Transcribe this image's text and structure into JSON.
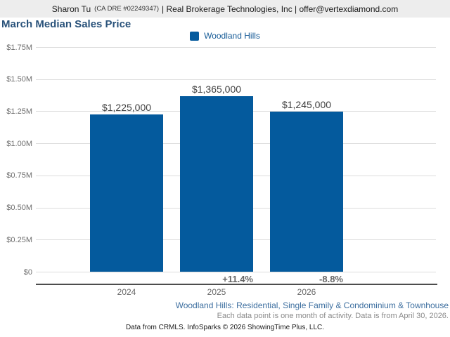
{
  "header": {
    "agent_name": "Sharon Tu",
    "license": "(CA DRE #02249347)",
    "company_contact": "| Real Brokerage Technologies, Inc | offer@vertexdiamond.com"
  },
  "colors": {
    "bar": "#045a9d",
    "title": "#29527a",
    "footer_link": "#3c6e9f",
    "header_background": "#ededed"
  },
  "chart_data": {
    "type": "bar",
    "title": "March Median Sales Price",
    "legend": [
      {
        "label": "Woodland Hills",
        "color": "#045a9d"
      }
    ],
    "legend_position": "top",
    "grid": true,
    "categories": [
      "2024",
      "2025",
      "2026"
    ],
    "series": [
      {
        "name": "Woodland Hills",
        "values": [
          1225000,
          1365000,
          1245000
        ],
        "value_labels": [
          "$1,225,000",
          "$1,365,000",
          "$1,245,000"
        ],
        "pct_change": [
          null,
          "+11.4%",
          "-8.8%"
        ]
      }
    ],
    "ylabel": "",
    "xlabel": "",
    "ylim": [
      0,
      1750000
    ],
    "y_ticks": [
      1750000,
      1500000,
      1250000,
      1000000,
      750000,
      500000,
      250000,
      0
    ],
    "y_tick_labels": [
      "$1.75M",
      "$1.50M",
      "$1.25M",
      "$1.00M",
      "$0.75M",
      "$0.50M",
      "$0.25M",
      "$0"
    ]
  },
  "footer": {
    "market_line": "Woodland Hills: Residential, Single Family & Condominium & Townhouse",
    "note_line": "Each data point is one month of activity. Data is from April 30, 2026.",
    "credit_line": "Data from CRMLS. InfoSparks © 2026 ShowingTime Plus, LLC."
  }
}
